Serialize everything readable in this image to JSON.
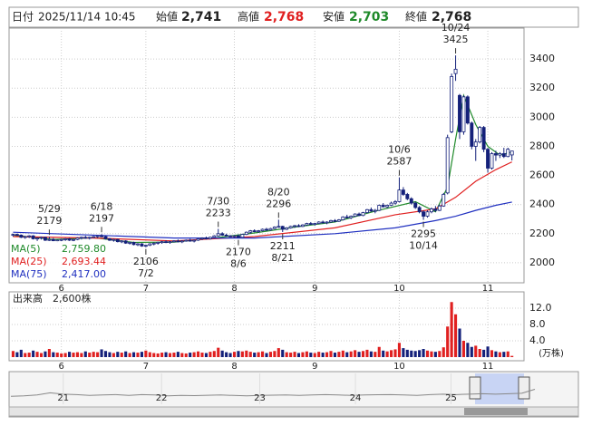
{
  "header": {
    "date_label": "日付",
    "date": "2025/11/14 10:45",
    "open_label": "始値",
    "open": "2,741",
    "high_label": "高値",
    "high": "2,768",
    "low_label": "安値",
    "low": "2,703",
    "close_label": "終値",
    "close": "2,768"
  },
  "chart_data": {
    "type": "candlestick",
    "up_color": "#ffffff",
    "down_color": "#14207a",
    "edge_color": "#14207a",
    "ylim": [
      1862.5,
      3612.5
    ],
    "yticks": [
      2000,
      2200,
      2400,
      2600,
      2800,
      3000,
      3200,
      3400
    ],
    "xlim": [
      -1,
      127
    ],
    "xticks": [
      {
        "value": 12,
        "label": "6"
      },
      {
        "value": 33,
        "label": "7"
      },
      {
        "value": 55,
        "label": "8"
      },
      {
        "value": 75,
        "label": "9"
      },
      {
        "value": 96,
        "label": "10"
      },
      {
        "value": 118,
        "label": "11"
      }
    ],
    "ohlc": [
      [
        2190,
        2200,
        2180,
        2195
      ],
      [
        2195,
        2200,
        2185,
        2190
      ],
      [
        2190,
        2195,
        2170,
        2175
      ],
      [
        2175,
        2185,
        2165,
        2180
      ],
      [
        2180,
        2190,
        2170,
        2185
      ],
      [
        2185,
        2190,
        2160,
        2165
      ],
      [
        2165,
        2175,
        2150,
        2170
      ],
      [
        2170,
        2180,
        2160,
        2175
      ],
      [
        2175,
        2179,
        2150,
        2155
      ],
      [
        2155,
        2179,
        2150,
        2160
      ],
      [
        2160,
        2170,
        2145,
        2150
      ],
      [
        2150,
        2160,
        2140,
        2155
      ],
      [
        2155,
        2165,
        2145,
        2160
      ],
      [
        2160,
        2170,
        2150,
        2165
      ],
      [
        2165,
        2170,
        2150,
        2155
      ],
      [
        2155,
        2165,
        2145,
        2160
      ],
      [
        2160,
        2175,
        2155,
        2170
      ],
      [
        2170,
        2180,
        2160,
        2175
      ],
      [
        2175,
        2185,
        2165,
        2170
      ],
      [
        2170,
        2180,
        2160,
        2175
      ],
      [
        2175,
        2185,
        2170,
        2180
      ],
      [
        2180,
        2190,
        2170,
        2185
      ],
      [
        2185,
        2197,
        2175,
        2180
      ],
      [
        2180,
        2185,
        2160,
        2165
      ],
      [
        2165,
        2170,
        2150,
        2155
      ],
      [
        2155,
        2165,
        2145,
        2160
      ],
      [
        2160,
        2165,
        2140,
        2145
      ],
      [
        2145,
        2155,
        2135,
        2150
      ],
      [
        2150,
        2155,
        2130,
        2135
      ],
      [
        2135,
        2145,
        2125,
        2140
      ],
      [
        2140,
        2145,
        2120,
        2125
      ],
      [
        2125,
        2135,
        2115,
        2130
      ],
      [
        2130,
        2135,
        2110,
        2115
      ],
      [
        2115,
        2125,
        2106,
        2120
      ],
      [
        2120,
        2135,
        2115,
        2130
      ],
      [
        2130,
        2140,
        2120,
        2135
      ],
      [
        2135,
        2145,
        2125,
        2140
      ],
      [
        2140,
        2150,
        2130,
        2145
      ],
      [
        2145,
        2155,
        2135,
        2140
      ],
      [
        2140,
        2150,
        2130,
        2145
      ],
      [
        2145,
        2155,
        2140,
        2150
      ],
      [
        2150,
        2160,
        2140,
        2145
      ],
      [
        2145,
        2155,
        2135,
        2150
      ],
      [
        2150,
        2160,
        2145,
        2155
      ],
      [
        2155,
        2165,
        2145,
        2150
      ],
      [
        2150,
        2160,
        2140,
        2155
      ],
      [
        2155,
        2170,
        2150,
        2165
      ],
      [
        2165,
        2175,
        2155,
        2170
      ],
      [
        2170,
        2180,
        2160,
        2165
      ],
      [
        2165,
        2180,
        2160,
        2175
      ],
      [
        2175,
        2190,
        2170,
        2185
      ],
      [
        2185,
        2233,
        2180,
        2200
      ],
      [
        2200,
        2210,
        2185,
        2190
      ],
      [
        2190,
        2200,
        2180,
        2185
      ],
      [
        2185,
        2190,
        2175,
        2180
      ],
      [
        2180,
        2190,
        2172,
        2185
      ],
      [
        2185,
        2195,
        2170,
        2175
      ],
      [
        2175,
        2200,
        2172,
        2195
      ],
      [
        2195,
        2215,
        2190,
        2210
      ],
      [
        2210,
        2225,
        2200,
        2220
      ],
      [
        2220,
        2230,
        2210,
        2215
      ],
      [
        2215,
        2225,
        2205,
        2220
      ],
      [
        2220,
        2235,
        2215,
        2230
      ],
      [
        2230,
        2240,
        2220,
        2225
      ],
      [
        2225,
        2240,
        2220,
        2235
      ],
      [
        2235,
        2250,
        2230,
        2245
      ],
      [
        2245,
        2296,
        2240,
        2250
      ],
      [
        2250,
        2255,
        2211,
        2230
      ],
      [
        2230,
        2245,
        2225,
        2240
      ],
      [
        2240,
        2255,
        2235,
        2250
      ],
      [
        2250,
        2260,
        2240,
        2255
      ],
      [
        2255,
        2265,
        2245,
        2250
      ],
      [
        2250,
        2265,
        2245,
        2260
      ],
      [
        2260,
        2275,
        2255,
        2270
      ],
      [
        2270,
        2280,
        2260,
        2265
      ],
      [
        2265,
        2275,
        2255,
        2270
      ],
      [
        2270,
        2285,
        2265,
        2280
      ],
      [
        2280,
        2290,
        2270,
        2275
      ],
      [
        2275,
        2285,
        2265,
        2280
      ],
      [
        2280,
        2295,
        2275,
        2290
      ],
      [
        2290,
        2300,
        2280,
        2285
      ],
      [
        2285,
        2300,
        2280,
        2295
      ],
      [
        2295,
        2320,
        2290,
        2315
      ],
      [
        2315,
        2330,
        2305,
        2310
      ],
      [
        2310,
        2325,
        2300,
        2320
      ],
      [
        2320,
        2340,
        2315,
        2335
      ],
      [
        2335,
        2345,
        2320,
        2325
      ],
      [
        2325,
        2350,
        2320,
        2345
      ],
      [
        2345,
        2370,
        2340,
        2365
      ],
      [
        2365,
        2380,
        2350,
        2355
      ],
      [
        2355,
        2370,
        2340,
        2360
      ],
      [
        2360,
        2400,
        2355,
        2395
      ],
      [
        2395,
        2410,
        2380,
        2385
      ],
      [
        2385,
        2400,
        2375,
        2395
      ],
      [
        2395,
        2420,
        2390,
        2410
      ],
      [
        2410,
        2430,
        2400,
        2420
      ],
      [
        2420,
        2587,
        2415,
        2500
      ],
      [
        2500,
        2520,
        2460,
        2470
      ],
      [
        2470,
        2480,
        2430,
        2440
      ],
      [
        2440,
        2450,
        2400,
        2410
      ],
      [
        2410,
        2420,
        2370,
        2380
      ],
      [
        2380,
        2390,
        2340,
        2350
      ],
      [
        2350,
        2360,
        2295,
        2320
      ],
      [
        2320,
        2360,
        2310,
        2350
      ],
      [
        2350,
        2380,
        2340,
        2370
      ],
      [
        2370,
        2390,
        2350,
        2360
      ],
      [
        2360,
        2400,
        2355,
        2390
      ],
      [
        2390,
        2480,
        2385,
        2470
      ],
      [
        2480,
        2880,
        2470,
        2860
      ],
      [
        2900,
        3300,
        2890,
        3280
      ],
      [
        3300,
        3425,
        3250,
        3330
      ],
      [
        3150,
        3160,
        2850,
        2900
      ],
      [
        2900,
        3150,
        2880,
        3140
      ],
      [
        3140,
        3150,
        2950,
        2960
      ],
      [
        2960,
        2970,
        2780,
        2800
      ],
      [
        2800,
        2850,
        2700,
        2830
      ],
      [
        2830,
        2940,
        2820,
        2930
      ],
      [
        2930,
        2940,
        2760,
        2780
      ],
      [
        2780,
        2790,
        2620,
        2650
      ],
      [
        2650,
        2760,
        2640,
        2750
      ],
      [
        2750,
        2770,
        2700,
        2740
      ],
      [
        2740,
        2760,
        2720,
        2750
      ],
      [
        2750,
        2790,
        2720,
        2730
      ],
      [
        2730,
        2790,
        2725,
        2780
      ],
      [
        2741,
        2768,
        2703,
        2768
      ]
    ],
    "ma": [
      {
        "name": "MA(5)",
        "value_label": "2,759.80",
        "color": "#1f8a2a",
        "x": [
          0,
          10,
          20,
          30,
          40,
          50,
          60,
          70,
          80,
          90,
          100,
          105,
          108,
          110,
          112,
          115,
          118,
          121,
          124
        ],
        "values": [
          2190,
          2160,
          2172,
          2140,
          2142,
          2170,
          2205,
          2245,
          2280,
          2355,
          2420,
          2350,
          2520,
          2850,
          3150,
          2950,
          2800,
          2740,
          2760
        ]
      },
      {
        "name": "MA(25)",
        "value_label": "2,693.44",
        "color": "#e02020",
        "x": [
          0,
          20,
          40,
          60,
          80,
          95,
          105,
          110,
          115,
          120,
          124
        ],
        "values": [
          2180,
          2170,
          2150,
          2180,
          2240,
          2330,
          2370,
          2450,
          2560,
          2640,
          2693
        ]
      },
      {
        "name": "MA(75)",
        "value_label": "2,417.00",
        "color": "#2030c0",
        "x": [
          0,
          20,
          40,
          60,
          80,
          95,
          105,
          110,
          115,
          120,
          124
        ],
        "values": [
          2210,
          2190,
          2170,
          2170,
          2200,
          2240,
          2290,
          2320,
          2360,
          2395,
          2417
        ]
      }
    ],
    "annotations": [
      {
        "x": 9,
        "date": "5/29",
        "price": 2179,
        "place": "above"
      },
      {
        "x": 22,
        "date": "6/18",
        "price": 2197,
        "place": "above"
      },
      {
        "x": 33,
        "date": "7/2",
        "price": 2106,
        "place": "below"
      },
      {
        "x": 51,
        "date": "7/30",
        "price": 2233,
        "place": "above"
      },
      {
        "x": 56,
        "date": "8/6",
        "price": 2170,
        "place": "below"
      },
      {
        "x": 66,
        "date": "8/20",
        "price": 2296,
        "place": "above"
      },
      {
        "x": 67,
        "date": "8/21",
        "price": 2211,
        "place": "below"
      },
      {
        "x": 96,
        "date": "10/6",
        "price": 2587,
        "place": "above"
      },
      {
        "x": 102,
        "date": "10/14",
        "price": 2295,
        "place": "below"
      },
      {
        "x": 110,
        "date": "10/24",
        "price": 3425,
        "place": "above"
      }
    ],
    "volume": {
      "label": "出来高　2,600株",
      "unit": "(万株)",
      "ylim": [
        0,
        16
      ],
      "yticks": [
        {
          "value": 4,
          "label": "4.0"
        },
        {
          "value": 8,
          "label": "8.0"
        },
        {
          "value": 12,
          "label": "12.0"
        }
      ],
      "values": [
        1.5,
        1.2,
        1.8,
        1.0,
        1.1,
        1.6,
        1.3,
        1.0,
        1.4,
        2.0,
        1.2,
        1.1,
        0.9,
        1.0,
        1.3,
        1.1,
        1.2,
        1.0,
        1.4,
        1.1,
        1.3,
        1.2,
        1.9,
        1.5,
        1.2,
        1.0,
        1.3,
        1.1,
        1.4,
        1.0,
        1.2,
        1.1,
        1.3,
        1.6,
        1.2,
        1.0,
        0.9,
        1.1,
        1.2,
        1.0,
        1.1,
        1.3,
        1.0,
        0.9,
        1.1,
        1.2,
        1.4,
        1.1,
        1.0,
        1.3,
        1.5,
        2.3,
        1.6,
        1.2,
        1.0,
        1.3,
        1.5,
        1.4,
        1.6,
        1.3,
        1.1,
        1.2,
        1.4,
        1.0,
        1.3,
        1.5,
        2.2,
        1.8,
        1.2,
        1.1,
        1.3,
        1.0,
        1.2,
        1.4,
        1.1,
        1.0,
        1.3,
        1.1,
        1.2,
        1.5,
        1.1,
        1.3,
        1.6,
        1.2,
        1.4,
        1.7,
        1.3,
        1.5,
        1.8,
        1.4,
        1.3,
        2.5,
        1.6,
        1.4,
        1.7,
        1.9,
        3.5,
        2.2,
        1.8,
        1.6,
        1.5,
        1.7,
        2.0,
        1.6,
        1.4,
        1.3,
        1.5,
        2.4,
        7.5,
        13.5,
        10.5,
        7.0,
        4.0,
        3.5,
        2.5,
        2.8,
        2.0,
        1.8,
        2.6,
        1.7,
        1.4,
        1.2,
        1.3,
        1.4,
        0.3
      ]
    },
    "navigator": {
      "ylim": [
        1000,
        4500
      ],
      "values": [
        1900,
        1950,
        2050,
        2300,
        2150,
        2100,
        2000,
        2050,
        2100,
        2000,
        2100,
        2050,
        1950,
        2000,
        1980,
        2020,
        2050,
        2000,
        1950,
        2000,
        2030,
        2050,
        2000,
        2050,
        2100,
        2050,
        2000,
        2050,
        2080,
        2100,
        2050,
        2000,
        2100,
        2150,
        2100,
        2150,
        2200,
        2150,
        2200,
        2250,
        2700
      ],
      "xticks": [
        {
          "value": 4,
          "label": "21"
        },
        {
          "value": 11.5,
          "label": "22"
        },
        {
          "value": 19,
          "label": "23"
        },
        {
          "value": 26.3,
          "label": "24"
        },
        {
          "value": 33.6,
          "label": "25"
        }
      ]
    }
  }
}
